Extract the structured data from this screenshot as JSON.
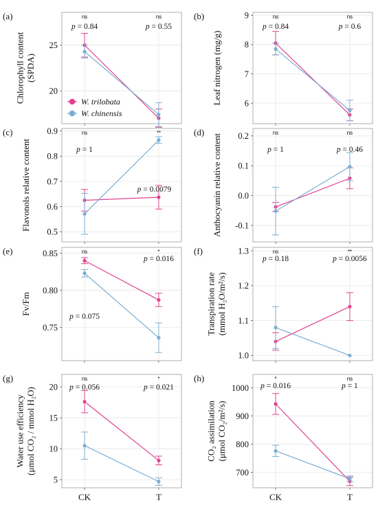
{
  "colors": {
    "trilobata": "#e0428f",
    "chinensis": "#7aaed0",
    "grid": "#e6e6e6",
    "axis": "#555555"
  },
  "categories": [
    "CK",
    "T"
  ],
  "legend": {
    "items": [
      {
        "label": "W. trilobata",
        "color": "#e0428f"
      },
      {
        "label": "W. chinensis",
        "color": "#7aaed0"
      }
    ]
  },
  "chart_data": [
    {
      "type": "line",
      "panel": "(a)",
      "ylabel": [
        "Chlorophyll content",
        "(SPDA)"
      ],
      "ylim": [
        16.4,
        28.6
      ],
      "yticks": [
        20,
        25
      ],
      "categories": [
        "CK",
        "T"
      ],
      "series": [
        {
          "name": "W. trilobata",
          "values": [
            25.0,
            17.0
          ],
          "err": [
            1.3,
            1.0
          ]
        },
        {
          "name": "W. chinensis",
          "values": [
            24.3,
            17.4
          ],
          "err": [
            0.7,
            1.3
          ]
        }
      ],
      "sig": [
        "ns",
        "ns"
      ],
      "p": [
        "p = 0.84",
        "p = 0.55"
      ],
      "legend": true
    },
    {
      "type": "line",
      "panel": "(b)",
      "ylabel": [
        "Leaf nitrogen (mg/g)"
      ],
      "ylim": [
        5.3,
        9.1
      ],
      "yticks": [
        6,
        7,
        8,
        9
      ],
      "categories": [
        "CK",
        "T"
      ],
      "series": [
        {
          "name": "W. trilobata",
          "values": [
            8.05,
            5.6
          ],
          "err": [
            0.4,
            0.2
          ]
        },
        {
          "name": "W. chinensis",
          "values": [
            7.85,
            5.75
          ],
          "err": [
            0.2,
            0.35
          ]
        }
      ],
      "sig": [
        "ns",
        "ns"
      ],
      "p": [
        "p = 0.84",
        "p = 0.6"
      ]
    },
    {
      "type": "line",
      "panel": "(c)",
      "ylabel": [
        "Flavonols relative content"
      ],
      "ylim": [
        0.46,
        0.91
      ],
      "yticks": [
        0.5,
        0.6,
        0.7,
        0.8,
        0.9
      ],
      "categories": [
        "CK",
        "T"
      ],
      "series": [
        {
          "name": "W. trilobata",
          "values": [
            0.625,
            0.637
          ],
          "err": [
            0.043,
            0.047
          ]
        },
        {
          "name": "W. chinensis",
          "values": [
            0.571,
            0.864
          ],
          "err": [
            0.081,
            0.013
          ]
        }
      ],
      "sig": [
        "ns",
        "**"
      ],
      "p": [
        "p = 1",
        "p = 0.0079"
      ]
    },
    {
      "type": "line",
      "panel": "(d)",
      "ylabel": [
        "Anthocyanin relative content"
      ],
      "ylim": [
        -0.155,
        0.225
      ],
      "yticks": [
        -0.1,
        0.0,
        0.1,
        0.2
      ],
      "categories": [
        "CK",
        "T"
      ],
      "series": [
        {
          "name": "W. trilobata",
          "values": [
            -0.038,
            0.058
          ],
          "err": [
            0.015,
            0.035
          ]
        },
        {
          "name": "W. chinensis",
          "values": [
            -0.052,
            0.097
          ],
          "err": [
            0.08,
            0.047
          ]
        }
      ],
      "sig": [
        "ns",
        "ns"
      ],
      "p": [
        "p = 1",
        "p = 0.46"
      ]
    },
    {
      "type": "line",
      "panel": "(e)",
      "ylabel": [
        "Fv/Fm"
      ],
      "ylim": [
        0.705,
        0.858
      ],
      "yticks": [
        0.75,
        0.8,
        0.85
      ],
      "categories": [
        "CK",
        "T"
      ],
      "series": [
        {
          "name": "W. trilobata",
          "values": [
            0.84,
            0.787
          ],
          "err": [
            0.004,
            0.009
          ]
        },
        {
          "name": "W. chinensis",
          "values": [
            0.823,
            0.736
          ],
          "err": [
            0.005,
            0.02
          ]
        }
      ],
      "sig": [
        "ns",
        "*"
      ],
      "p": [
        "p = 0.075",
        "p = 0.016"
      ]
    },
    {
      "type": "line",
      "panel": "(f)",
      "ylabel": [
        "Transpiration rate",
        "(mmol H₂O/m²/s)"
      ],
      "ylim": [
        0.985,
        1.31
      ],
      "yticks": [
        1.0,
        1.1,
        1.2,
        1.3
      ],
      "categories": [
        "CK",
        "T"
      ],
      "series": [
        {
          "name": "W. trilobata",
          "values": [
            1.04,
            1.14
          ],
          "err": [
            0.025,
            0.04
          ]
        },
        {
          "name": "W. chinensis",
          "values": [
            1.08,
            1.0
          ],
          "err": [
            0.06,
            0.0
          ]
        }
      ],
      "sig": [
        "ns",
        "**"
      ],
      "p": [
        "p = 0.18",
        "p = 0.0056"
      ]
    },
    {
      "type": "line",
      "panel": "(g)",
      "ylabel": [
        "Water use efficiency",
        "(μmol CO₂ / mmol H₂O)"
      ],
      "ylim": [
        3.7,
        22.0
      ],
      "yticks": [
        5,
        10,
        15,
        20
      ],
      "categories": [
        "CK",
        "T"
      ],
      "series": [
        {
          "name": "W. trilobata",
          "values": [
            17.6,
            8.1
          ],
          "err": [
            1.8,
            0.7
          ]
        },
        {
          "name": "W. chinensis",
          "values": [
            10.5,
            4.7
          ],
          "err": [
            2.2,
            0.6
          ]
        }
      ],
      "sig": [
        "ns",
        "*"
      ],
      "p": [
        "p = 0.056",
        "p = 0.021"
      ]
    },
    {
      "type": "line",
      "panel": "(h)",
      "ylabel": [
        "CO₂ assimilation",
        "(μmol CO₂/m²/s)"
      ],
      "ylim": [
        645,
        1048
      ],
      "yticks": [
        700,
        800,
        900,
        1000
      ],
      "categories": [
        "CK",
        "T"
      ],
      "series": [
        {
          "name": "W. trilobata",
          "values": [
            943,
            668
          ],
          "err": [
            37,
            15
          ]
        },
        {
          "name": "W. chinensis",
          "values": [
            776,
            677
          ],
          "err": [
            20,
            10
          ]
        }
      ],
      "sig": [
        "*",
        "ns"
      ],
      "p": [
        "p = 0.016",
        "p = 1"
      ]
    }
  ]
}
